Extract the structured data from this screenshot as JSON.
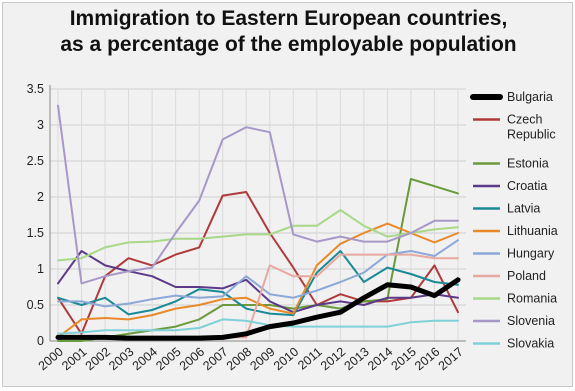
{
  "chart_data": {
    "type": "line",
    "title_lines": [
      "Immigration to Eastern European countries,",
      "as a percentage of the employable population"
    ],
    "xlabel": "",
    "ylabel": "",
    "categories": [
      "2000",
      "2001",
      "2002",
      "2003",
      "2004",
      "2005",
      "2006",
      "2007",
      "2008",
      "2009",
      "2010",
      "2011",
      "2012",
      "2013",
      "2014",
      "2015",
      "2016",
      "2017"
    ],
    "ylim": [
      0,
      3.5
    ],
    "yticks": [
      "0",
      "0.5",
      "1",
      "1.5",
      "2",
      "2.5",
      "3",
      "3.5"
    ],
    "grid": true,
    "legend_position": "right",
    "series": [
      {
        "name": "Bulgaria",
        "color": "#000000",
        "bold": true,
        "values": [
          0.05,
          0.05,
          0.05,
          0.04,
          0.04,
          0.04,
          0.04,
          0.05,
          0.1,
          0.2,
          0.25,
          0.33,
          0.4,
          0.6,
          0.78,
          0.75,
          0.63,
          0.85
        ]
      },
      {
        "name": "Czech\nRepublic",
        "color": "#b03a3a",
        "values": [
          0.6,
          0.1,
          0.9,
          1.15,
          1.05,
          1.2,
          1.3,
          2.02,
          2.07,
          1.5,
          1.02,
          0.5,
          0.65,
          0.55,
          0.55,
          0.6,
          1.05,
          0.4
        ]
      },
      {
        "name": "Estonia",
        "color": "#6a9a3a",
        "values": [
          0.0,
          0.0,
          0.05,
          0.1,
          0.15,
          0.2,
          0.3,
          0.5,
          0.5,
          0.5,
          0.45,
          0.5,
          0.45,
          0.55,
          0.58,
          2.25,
          2.15,
          2.05
        ]
      },
      {
        "name": "Croatia",
        "color": "#5b3a8a",
        "values": [
          0.8,
          1.25,
          1.05,
          0.97,
          0.9,
          0.75,
          0.75,
          0.73,
          0.85,
          0.55,
          0.4,
          0.5,
          0.55,
          0.5,
          0.6,
          0.6,
          0.65,
          0.6
        ]
      },
      {
        "name": "Latvia",
        "color": "#1a8a96",
        "values": [
          0.6,
          0.5,
          0.6,
          0.37,
          0.43,
          0.55,
          0.72,
          0.68,
          0.45,
          0.38,
          0.36,
          0.95,
          1.25,
          0.82,
          1.02,
          0.93,
          0.82,
          0.78
        ]
      },
      {
        "name": "Lithuania",
        "color": "#e88a2a",
        "values": [
          0.05,
          0.3,
          0.32,
          0.3,
          0.36,
          0.45,
          0.5,
          0.58,
          0.6,
          0.45,
          0.38,
          1.05,
          1.35,
          1.5,
          1.63,
          1.5,
          1.37,
          1.5
        ]
      },
      {
        "name": "Hungary",
        "color": "#8ca8d8",
        "values": [
          0.55,
          0.55,
          0.48,
          0.52,
          0.58,
          0.63,
          0.6,
          0.62,
          0.9,
          0.65,
          0.6,
          0.7,
          0.82,
          0.95,
          1.2,
          1.25,
          1.18,
          1.4
        ]
      },
      {
        "name": "Poland",
        "color": "#e8a8a0",
        "values": [
          0.04,
          0.05,
          0.06,
          0.05,
          0.05,
          0.05,
          0.05,
          0.05,
          0.05,
          1.05,
          0.9,
          0.9,
          1.2,
          1.2,
          1.2,
          1.2,
          1.15,
          1.15
        ]
      },
      {
        "name": "Romania",
        "color": "#a8d888",
        "values": [
          1.12,
          1.15,
          1.3,
          1.37,
          1.38,
          1.42,
          1.42,
          1.45,
          1.48,
          1.48,
          1.6,
          1.6,
          1.82,
          1.6,
          1.45,
          1.5,
          1.55,
          1.58
        ]
      },
      {
        "name": "Slovenia",
        "color": "#a898c8",
        "values": [
          3.27,
          0.8,
          0.9,
          0.97,
          1.02,
          1.5,
          1.95,
          2.8,
          2.97,
          2.9,
          1.48,
          1.38,
          1.45,
          1.38,
          1.38,
          1.5,
          1.67,
          1.67
        ]
      },
      {
        "name": "Slovakia",
        "color": "#80d0d8",
        "values": [
          0.1,
          0.12,
          0.15,
          0.15,
          0.15,
          0.15,
          0.18,
          0.3,
          0.28,
          0.22,
          0.2,
          0.2,
          0.2,
          0.2,
          0.2,
          0.26,
          0.28,
          0.28
        ]
      }
    ]
  }
}
